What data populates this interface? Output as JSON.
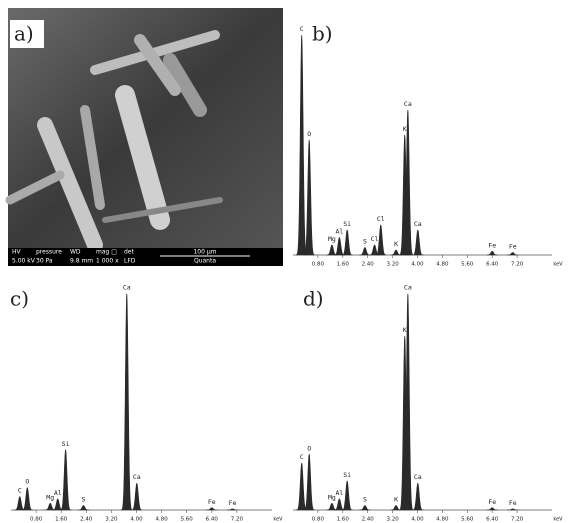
{
  "sem": {
    "panel": "a)",
    "info_headers": [
      "HV",
      "pressure",
      "WD",
      "mag □",
      "det"
    ],
    "info_values": [
      "5.00 kV",
      "30 Pa",
      "9.8 mm",
      "1 000 x",
      "LFD"
    ],
    "scale_bar": "100 µm",
    "instrument": "Quanta"
  },
  "chart_data": [
    {
      "type": "spectrum",
      "panel": "b)",
      "xlabel": "keV",
      "xlim": [
        0,
        8
      ],
      "ylim": [
        0,
        100
      ],
      "xticks": [
        {
          "value": 0.8,
          "label": "0.80"
        },
        {
          "value": 1.6,
          "label": "1.60"
        },
        {
          "value": 2.4,
          "label": "2.40"
        },
        {
          "value": 3.2,
          "label": "3.20"
        },
        {
          "value": 4.0,
          "label": "4.00"
        },
        {
          "value": 4.8,
          "label": "4.80"
        },
        {
          "value": 5.6,
          "label": "5.60"
        },
        {
          "value": 6.4,
          "label": "6.40"
        },
        {
          "value": 7.2,
          "label": "7.20"
        }
      ],
      "x": [
        0.28,
        0.52,
        1.25,
        1.49,
        1.74,
        2.31,
        2.62,
        2.82,
        3.31,
        3.59,
        3.69,
        4.01,
        6.4,
        7.06
      ],
      "values": [
        88,
        46,
        4,
        7,
        10,
        3,
        4,
        12,
        2,
        48,
        58,
        10,
        1.5,
        1
      ],
      "labels": [
        "C",
        "O",
        "Mg",
        "Al",
        "Si",
        "S",
        "Cl",
        "Cl",
        "K",
        "K",
        "Ca",
        "Ca",
        "Fe",
        "Fe"
      ]
    },
    {
      "type": "spectrum",
      "panel": "c)",
      "xlabel": "keV",
      "xlim": [
        0,
        8
      ],
      "ylim": [
        0,
        100
      ],
      "xticks": [
        {
          "value": 0.8,
          "label": "0.80"
        },
        {
          "value": 1.6,
          "label": "1.60"
        },
        {
          "value": 2.4,
          "label": "2.40"
        },
        {
          "value": 3.2,
          "label": "3.20"
        },
        {
          "value": 4.0,
          "label": "4.00"
        },
        {
          "value": 4.8,
          "label": "4.80"
        },
        {
          "value": 5.6,
          "label": "5.60"
        },
        {
          "value": 6.4,
          "label": "6.40"
        },
        {
          "value": 7.2,
          "label": "7.20"
        }
      ],
      "x": [
        0.28,
        0.52,
        1.25,
        1.49,
        1.74,
        2.31,
        3.69,
        4.01,
        6.4,
        7.06
      ],
      "values": [
        6,
        10,
        3,
        5,
        27,
        2,
        97,
        12,
        1,
        0.5
      ],
      "labels": [
        "C",
        "O",
        "Mg",
        "Al",
        "Si",
        "S",
        "Ca",
        "Ca",
        "Fe",
        "Fe"
      ]
    },
    {
      "type": "spectrum",
      "panel": "d)",
      "xlabel": "keV",
      "xlim": [
        0,
        8
      ],
      "ylim": [
        0,
        100
      ],
      "xticks": [
        {
          "value": 0.8,
          "label": "0.80"
        },
        {
          "value": 1.6,
          "label": "1.60"
        },
        {
          "value": 2.4,
          "label": "2.40"
        },
        {
          "value": 3.2,
          "label": "3.20"
        },
        {
          "value": 4.0,
          "label": "4.00"
        },
        {
          "value": 4.8,
          "label": "4.80"
        },
        {
          "value": 5.6,
          "label": "5.60"
        },
        {
          "value": 6.4,
          "label": "6.40"
        },
        {
          "value": 7.2,
          "label": "7.20"
        }
      ],
      "x": [
        0.28,
        0.52,
        1.25,
        1.49,
        1.74,
        2.31,
        3.31,
        3.59,
        3.69,
        4.01,
        6.4,
        7.06
      ],
      "values": [
        21,
        25,
        3,
        5,
        13,
        2,
        2,
        78,
        97,
        12,
        1,
        0.5
      ],
      "labels": [
        "C",
        "O",
        "Mg",
        "Al",
        "Si",
        "S",
        "K",
        "K",
        "Ca",
        "Ca",
        "Fe",
        "Fe"
      ]
    }
  ]
}
